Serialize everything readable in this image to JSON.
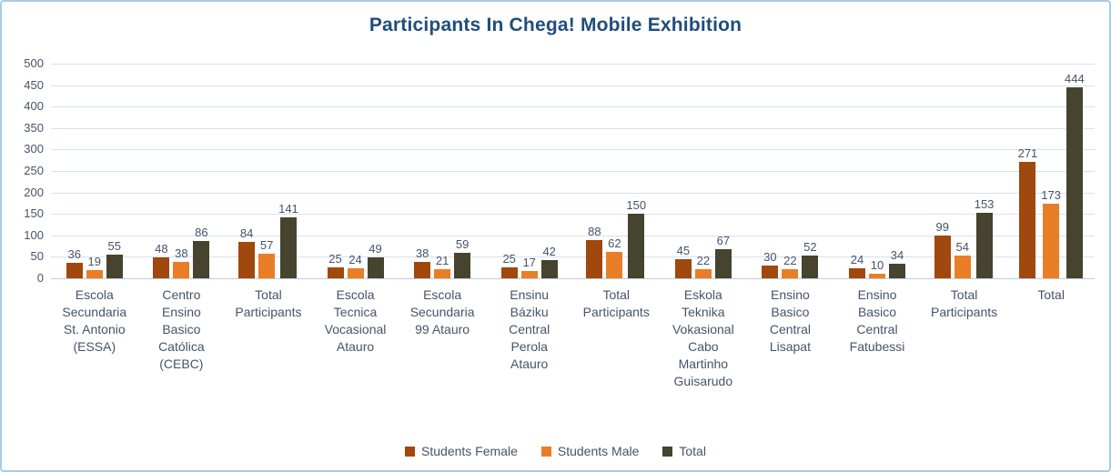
{
  "colors": {
    "title": "#1F4E79",
    "axis_text": "#44546A",
    "gridline": "#D8E1F0",
    "frame_border": "#A8CBE9",
    "students_female": "#A0480D",
    "students_male": "#E97E26",
    "total": "#46432E"
  },
  "chart_data": {
    "type": "bar",
    "title": "Participants In Chega! Mobile Exhibition",
    "xlabel": "",
    "ylabel": "",
    "ylim": [
      0,
      500
    ],
    "yticks": [
      0,
      50,
      100,
      150,
      200,
      250,
      300,
      350,
      400,
      450,
      500
    ],
    "grid": true,
    "legend_position": "bottom",
    "categories": [
      "Escola\nSecundaria\nSt. Antonio\n(ESSA)",
      "Centro\nEnsino\nBasico\nCatólica\n(CEBC)",
      "Total\nParticipants",
      "Escola\nTecnica\nVocasional\nAtauro",
      "Escola\nSecundaria\n99 Atauro",
      "Ensinu\nBáziku\nCentral\nPerola\nAtauro",
      "Total\nParticipants",
      "Eskola\nTeknika\nVokasional\nCabo\nMartinho\nGuisarudo",
      "Ensino\nBasico\nCentral\nLisapat",
      "Ensino\nBasico\nCentral\nFatubessi",
      "Total\nParticipants",
      "Total"
    ],
    "series": [
      {
        "name": "Students Female",
        "color": "#A0480D",
        "values": [
          36,
          48,
          84,
          25,
          38,
          25,
          88,
          45,
          30,
          24,
          99,
          271
        ]
      },
      {
        "name": "Students Male",
        "color": "#E97E26",
        "values": [
          19,
          38,
          57,
          24,
          21,
          17,
          62,
          22,
          22,
          10,
          54,
          173
        ]
      },
      {
        "name": "Total",
        "color": "#46432E",
        "values": [
          55,
          86,
          141,
          49,
          59,
          42,
          150,
          67,
          52,
          34,
          153,
          444
        ]
      }
    ]
  }
}
